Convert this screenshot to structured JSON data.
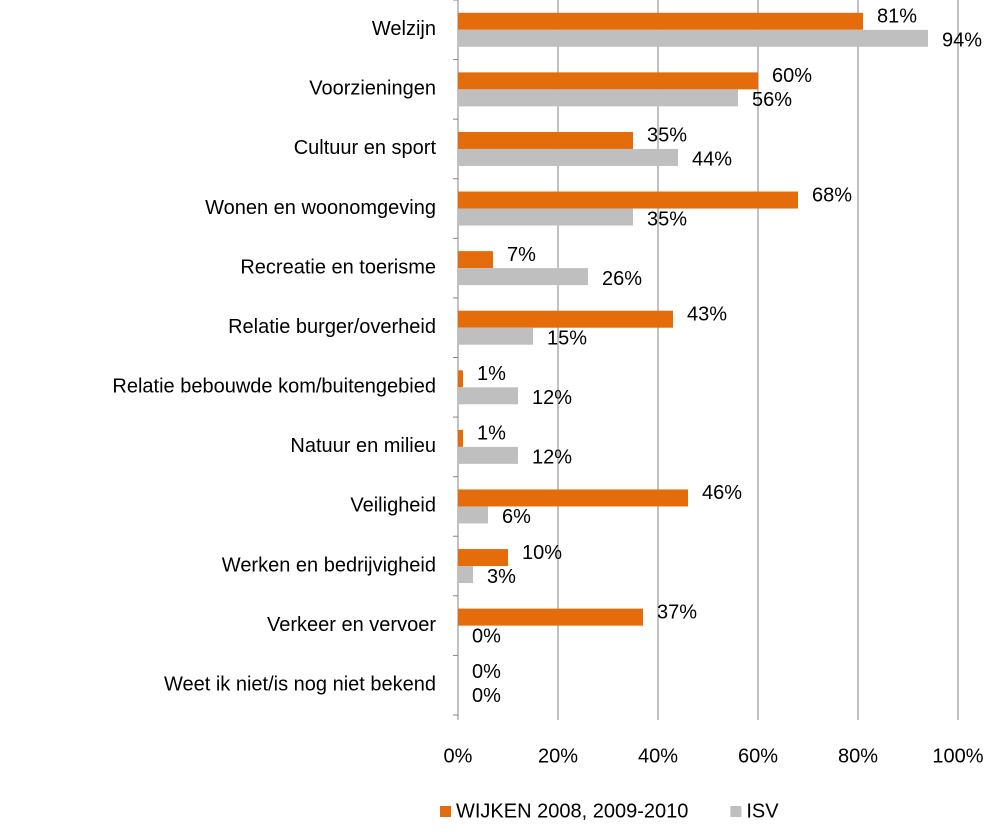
{
  "chart_data": {
    "type": "bar",
    "orientation": "horizontal",
    "categories": [
      "Welzijn",
      "Voorzieningen",
      "Cultuur en sport",
      "Wonen en woonomgeving",
      "Recreatie en toerisme",
      "Relatie burger/overheid",
      "Relatie bebouwde kom/buitengebied",
      "Natuur en milieu",
      "Veiligheid",
      "Werken en bedrijvigheid",
      "Verkeer en vervoer",
      "Weet ik niet/is nog niet bekend"
    ],
    "series": [
      {
        "name": "WIJKEN 2008, 2009-2010",
        "color": "#e46c0a",
        "values": [
          81,
          60,
          35,
          68,
          7,
          43,
          1,
          1,
          46,
          10,
          37,
          0
        ],
        "value_labels": [
          "81%",
          "60%",
          "35%",
          "68%",
          "7%",
          "43%",
          "1%",
          "1%",
          "46%",
          "10%",
          "37%",
          "0%"
        ]
      },
      {
        "name": "ISV",
        "color": "#bfbfbf",
        "values": [
          94,
          56,
          44,
          35,
          26,
          15,
          12,
          12,
          6,
          3,
          0,
          0
        ],
        "value_labels": [
          "94%",
          "56%",
          "44%",
          "35%",
          "26%",
          "15%",
          "12%",
          "12%",
          "6%",
          "3%",
          "0%",
          "0%"
        ]
      }
    ],
    "xlim": [
      0,
      100
    ],
    "xticks": [
      {
        "value": 0,
        "label": "0%"
      },
      {
        "value": 20,
        "label": "20%"
      },
      {
        "value": 40,
        "label": "40%"
      },
      {
        "value": 60,
        "label": "60%"
      },
      {
        "value": 80,
        "label": "80%"
      },
      {
        "value": 100,
        "label": "100%"
      }
    ],
    "grid": true,
    "legend": "bottom"
  }
}
